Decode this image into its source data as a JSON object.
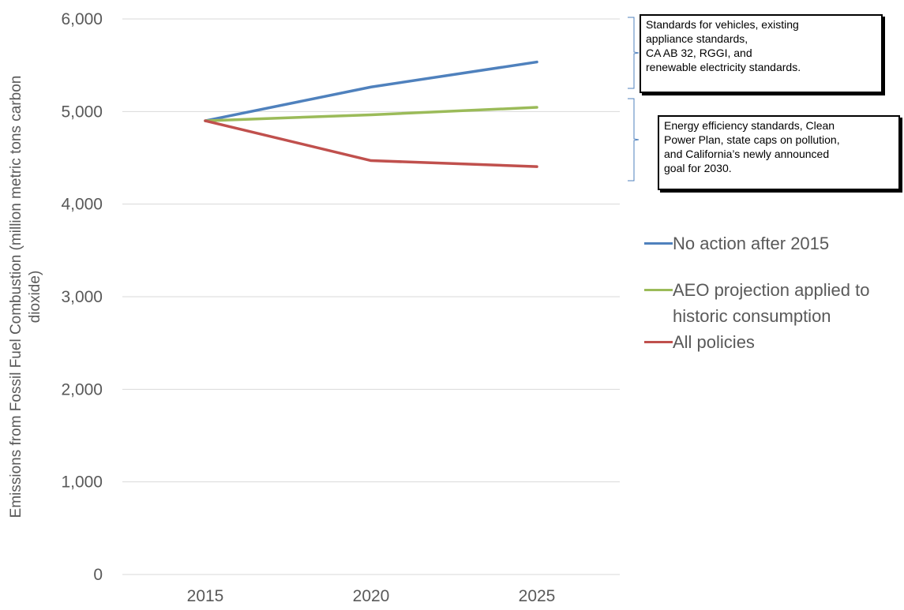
{
  "chart_data": {
    "type": "line",
    "title": "",
    "xlabel": "",
    "ylabel_lines": [
      "Emissions from Fossil Fuel Combustion (million metric tons carbon",
      "dioxide)"
    ],
    "ylim": [
      0,
      6000
    ],
    "yticks": [
      0,
      1000,
      2000,
      3000,
      4000,
      5000,
      6000
    ],
    "ytick_labels": [
      "0",
      "1,000",
      "2,000",
      "3,000",
      "4,000",
      "5,000",
      "6,000"
    ],
    "x": [
      2015,
      2020,
      2025
    ],
    "xtick_labels": [
      "2015",
      "2020",
      "2025"
    ],
    "grid": true,
    "legend_position": "right",
    "series": [
      {
        "name": "No action after 2015",
        "color": "#4f81bd",
        "values": [
          4900,
          5265,
          5535
        ]
      },
      {
        "name": "AEO projection applied to historic consumption",
        "color": "#9bbb59",
        "values": [
          4900,
          4965,
          5045
        ]
      },
      {
        "name": "All policies",
        "color": "#c0504d",
        "values": [
          4900,
          4470,
          4405
        ]
      }
    ],
    "annotations": [
      {
        "lines": [
          "Standards for vehicles, existing",
          "appliance standards,",
          "CA AB 32, RGGI, and",
          "renewable electricity standards."
        ]
      },
      {
        "lines": [
          "Energy efficiency standards, Clean",
          "Power Plan, state caps on pollution,",
          "and California’s newly announced",
          "goal for 2030."
        ]
      }
    ]
  }
}
